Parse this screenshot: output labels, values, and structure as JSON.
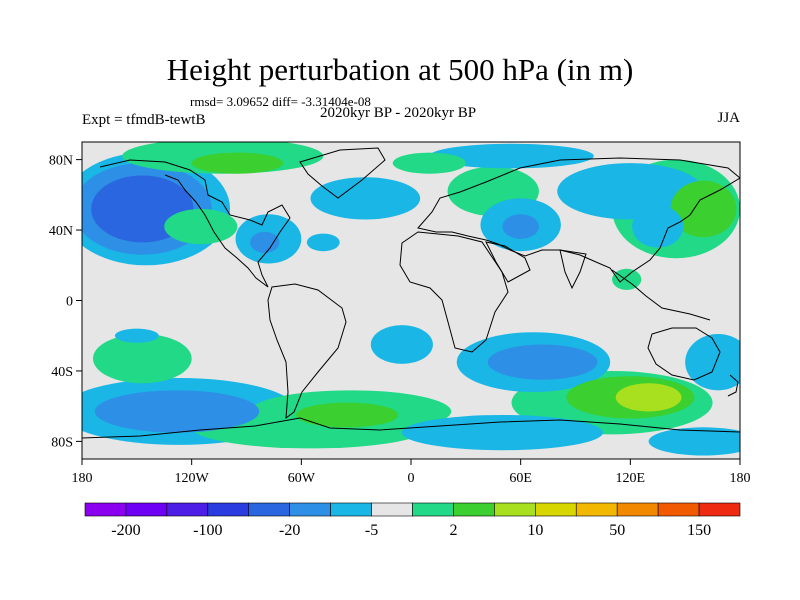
{
  "title": "Height perturbation at 500 hPa (in m)",
  "stats_line": "rmsd= 3.09652 diff= -3.31404e-08",
  "period_line": "2020kyr BP - 2020kyr BP",
  "experiment": "Expt = tfmdB-tewtB",
  "season": "JJA",
  "colors": {
    "neutral": "#e6e6e6",
    "light_blue": "#1ab6e6",
    "mid_blue": "#2e8fe6",
    "dark_blue": "#2a66e0",
    "teal_green": "#22d987",
    "green": "#3bcf2f",
    "lime": "#a8e01f"
  },
  "chart_data": {
    "type": "heatmap",
    "title": "Height perturbation at 500 hPa (in m)",
    "x_range": [
      -180,
      180
    ],
    "y_range": [
      -90,
      90
    ],
    "x_ticks": [
      {
        "value": -180,
        "label": "180"
      },
      {
        "value": -120,
        "label": "120W"
      },
      {
        "value": -60,
        "label": "60W"
      },
      {
        "value": 0,
        "label": "0"
      },
      {
        "value": 60,
        "label": "60E"
      },
      {
        "value": 120,
        "label": "120E"
      },
      {
        "value": 180,
        "label": "180"
      }
    ],
    "y_ticks": [
      {
        "value": 80,
        "label": "80N"
      },
      {
        "value": 40,
        "label": "40N"
      },
      {
        "value": 0,
        "label": "0"
      },
      {
        "value": -40,
        "label": "40S"
      },
      {
        "value": -80,
        "label": "80S"
      }
    ],
    "colorbar": {
      "colors": [
        "#8c00f0",
        "#6d00f5",
        "#4d1ee6",
        "#2a3ce0",
        "#2a66e0",
        "#2e8fe6",
        "#1ab6e6",
        "#e6e6e6",
        "#22d987",
        "#3bcf2f",
        "#a8e01f",
        "#d8d600",
        "#f2b800",
        "#f28800",
        "#f25a00",
        "#ee2a10"
      ],
      "labels": [
        {
          "index": 1,
          "text": "-200"
        },
        {
          "index": 3,
          "text": "-100"
        },
        {
          "index": 5,
          "text": "-20"
        },
        {
          "index": 7,
          "text": "-5"
        },
        {
          "index": 9,
          "text": "2"
        },
        {
          "index": 11,
          "text": "10"
        },
        {
          "index": 13,
          "text": "50"
        },
        {
          "index": 15,
          "text": "150"
        }
      ]
    },
    "anomalies": [
      {
        "lon": -147,
        "lat": 52,
        "rx": 28,
        "ry": 19,
        "level": "dark_blue"
      },
      {
        "lon": -147,
        "lat": 52,
        "rx": 38,
        "ry": 26,
        "level": "mid_blue"
      },
      {
        "lon": -145,
        "lat": 52,
        "rx": 46,
        "ry": 32,
        "level": "light_blue"
      },
      {
        "lon": -103,
        "lat": 82,
        "rx": 55,
        "ry": 10,
        "level": "teal_green"
      },
      {
        "lon": -95,
        "lat": 78,
        "rx": 25,
        "ry": 6,
        "level": "green"
      },
      {
        "lon": -78,
        "lat": 35,
        "rx": 18,
        "ry": 14,
        "level": "light_blue"
      },
      {
        "lon": -80,
        "lat": 33,
        "rx": 8,
        "ry": 6,
        "level": "mid_blue"
      },
      {
        "lon": -115,
        "lat": 42,
        "rx": 20,
        "ry": 10,
        "level": "teal_green"
      },
      {
        "lon": -48,
        "lat": 33,
        "rx": 9,
        "ry": 5,
        "level": "light_blue"
      },
      {
        "lon": -25,
        "lat": 58,
        "rx": 30,
        "ry": 12,
        "level": "light_blue"
      },
      {
        "lon": 55,
        "lat": 82,
        "rx": 45,
        "ry": 7,
        "level": "light_blue"
      },
      {
        "lon": 10,
        "lat": 78,
        "rx": 20,
        "ry": 6,
        "level": "teal_green"
      },
      {
        "lon": 45,
        "lat": 62,
        "rx": 25,
        "ry": 14,
        "level": "teal_green"
      },
      {
        "lon": 60,
        "lat": 43,
        "rx": 22,
        "ry": 15,
        "level": "light_blue"
      },
      {
        "lon": 60,
        "lat": 42,
        "rx": 10,
        "ry": 7,
        "level": "mid_blue"
      },
      {
        "lon": 120,
        "lat": 62,
        "rx": 40,
        "ry": 16,
        "level": "light_blue"
      },
      {
        "lon": 145,
        "lat": 52,
        "rx": 35,
        "ry": 28,
        "level": "teal_green"
      },
      {
        "lon": 160,
        "lat": 52,
        "rx": 18,
        "ry": 16,
        "level": "green"
      },
      {
        "lon": 135,
        "lat": 42,
        "rx": 14,
        "ry": 12,
        "level": "light_blue"
      },
      {
        "lon": 118,
        "lat": 12,
        "rx": 8,
        "ry": 6,
        "level": "teal_green"
      },
      {
        "lon": -147,
        "lat": -33,
        "rx": 27,
        "ry": 14,
        "level": "teal_green"
      },
      {
        "lon": -150,
        "lat": -20,
        "rx": 12,
        "ry": 4,
        "level": "light_blue"
      },
      {
        "lon": -127,
        "lat": -63,
        "rx": 65,
        "ry": 19,
        "level": "light_blue"
      },
      {
        "lon": -128,
        "lat": -63,
        "rx": 45,
        "ry": 12,
        "level": "mid_blue"
      },
      {
        "lon": -33,
        "lat": -63,
        "rx": 55,
        "ry": 12,
        "level": "teal_green"
      },
      {
        "lon": -55,
        "lat": -72,
        "rx": 65,
        "ry": 12,
        "level": "teal_green"
      },
      {
        "lon": -35,
        "lat": -65,
        "rx": 28,
        "ry": 7,
        "level": "green"
      },
      {
        "lon": -5,
        "lat": -25,
        "rx": 17,
        "ry": 11,
        "level": "light_blue"
      },
      {
        "lon": 67,
        "lat": -35,
        "rx": 42,
        "ry": 17,
        "level": "light_blue"
      },
      {
        "lon": 72,
        "lat": -35,
        "rx": 30,
        "ry": 10,
        "level": "mid_blue"
      },
      {
        "lon": 110,
        "lat": -58,
        "rx": 55,
        "ry": 18,
        "level": "teal_green"
      },
      {
        "lon": 120,
        "lat": -55,
        "rx": 35,
        "ry": 12,
        "level": "green"
      },
      {
        "lon": 130,
        "lat": -55,
        "rx": 18,
        "ry": 8,
        "level": "lime"
      },
      {
        "lon": 50,
        "lat": -75,
        "rx": 55,
        "ry": 10,
        "level": "light_blue"
      },
      {
        "lon": 160,
        "lat": -80,
        "rx": 30,
        "ry": 8,
        "level": "light_blue"
      },
      {
        "lon": 168,
        "lat": -35,
        "rx": 18,
        "ry": 16,
        "level": "light_blue"
      }
    ]
  }
}
